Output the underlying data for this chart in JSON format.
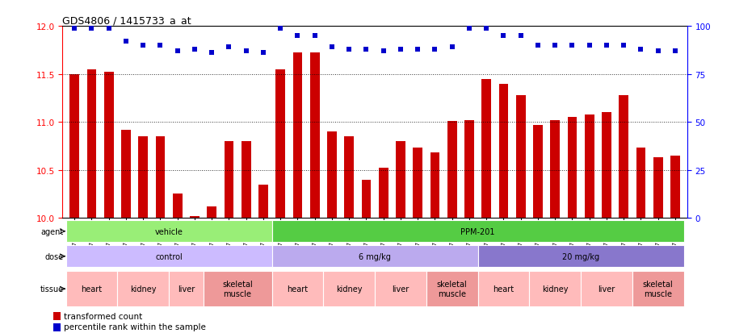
{
  "title": "GDS4806 / 1415733_a_at",
  "samples": [
    "GSM783280",
    "GSM783281",
    "GSM783282",
    "GSM783289",
    "GSM783290",
    "GSM783291",
    "GSM783298",
    "GSM783299",
    "GSM783300",
    "GSM783307",
    "GSM783308",
    "GSM783309",
    "GSM783283",
    "GSM783284",
    "GSM783285",
    "GSM783292",
    "GSM783293",
    "GSM783294",
    "GSM783301",
    "GSM783302",
    "GSM783303",
    "GSM783310",
    "GSM783311",
    "GSM783312",
    "GSM783286",
    "GSM783287",
    "GSM783288",
    "GSM783295",
    "GSM783296",
    "GSM783297",
    "GSM783304",
    "GSM783305",
    "GSM783306",
    "GSM783313",
    "GSM783314",
    "GSM783315"
  ],
  "bar_values": [
    11.5,
    11.55,
    11.52,
    10.92,
    10.85,
    10.85,
    10.25,
    10.02,
    10.12,
    10.8,
    10.8,
    10.35,
    11.55,
    11.72,
    11.72,
    10.9,
    10.85,
    10.4,
    10.52,
    10.8,
    10.73,
    10.68,
    11.01,
    11.02,
    11.45,
    11.4,
    11.28,
    10.97,
    11.02,
    11.05,
    11.08,
    11.1,
    11.28,
    10.73,
    10.63,
    10.65
  ],
  "percentile_values": [
    99,
    99,
    99,
    92,
    90,
    90,
    87,
    88,
    86,
    89,
    87,
    86,
    99,
    95,
    95,
    89,
    88,
    88,
    87,
    88,
    88,
    88,
    89,
    99,
    99,
    95,
    95,
    90,
    90,
    90,
    90,
    90,
    90,
    88,
    87,
    87
  ],
  "bar_color": "#cc0000",
  "percentile_color": "#0000cc",
  "ylim": [
    10.0,
    12.0
  ],
  "yticks": [
    10.0,
    10.5,
    11.0,
    11.5,
    12.0
  ],
  "y2lim": [
    0,
    100
  ],
  "y2ticks": [
    0,
    25,
    50,
    75,
    100
  ],
  "agent_info": [
    {
      "label": "vehicle",
      "start": 0,
      "end": 11,
      "color": "#99ee77"
    },
    {
      "label": "PPM-201",
      "start": 12,
      "end": 35,
      "color": "#55cc44"
    }
  ],
  "dose_info": [
    {
      "label": "control",
      "start": 0,
      "end": 11,
      "color": "#ccbbff"
    },
    {
      "label": "6 mg/kg",
      "start": 12,
      "end": 23,
      "color": "#bbaaee"
    },
    {
      "label": "20 mg/kg",
      "start": 24,
      "end": 35,
      "color": "#8877cc"
    }
  ],
  "tissue_groups": [
    {
      "label": "heart",
      "span": [
        0,
        2
      ],
      "color": "#ffbbbb"
    },
    {
      "label": "kidney",
      "span": [
        3,
        5
      ],
      "color": "#ffbbbb"
    },
    {
      "label": "liver",
      "span": [
        6,
        7
      ],
      "color": "#ffbbbb"
    },
    {
      "label": "skeletal\nmuscle",
      "span": [
        8,
        11
      ],
      "color": "#ee9999"
    },
    {
      "label": "heart",
      "span": [
        12,
        14
      ],
      "color": "#ffbbbb"
    },
    {
      "label": "kidney",
      "span": [
        15,
        17
      ],
      "color": "#ffbbbb"
    },
    {
      "label": "liver",
      "span": [
        18,
        20
      ],
      "color": "#ffbbbb"
    },
    {
      "label": "skeletal\nmuscle",
      "span": [
        21,
        23
      ],
      "color": "#ee9999"
    },
    {
      "label": "heart",
      "span": [
        24,
        26
      ],
      "color": "#ffbbbb"
    },
    {
      "label": "kidney",
      "span": [
        27,
        29
      ],
      "color": "#ffbbbb"
    },
    {
      "label": "liver",
      "span": [
        30,
        32
      ],
      "color": "#ffbbbb"
    },
    {
      "label": "skeletal\nmuscle",
      "span": [
        33,
        35
      ],
      "color": "#ee9999"
    }
  ],
  "legend_bar_label": "transformed count",
  "legend_pct_label": "percentile rank within the sample",
  "background_color": "#ffffff"
}
